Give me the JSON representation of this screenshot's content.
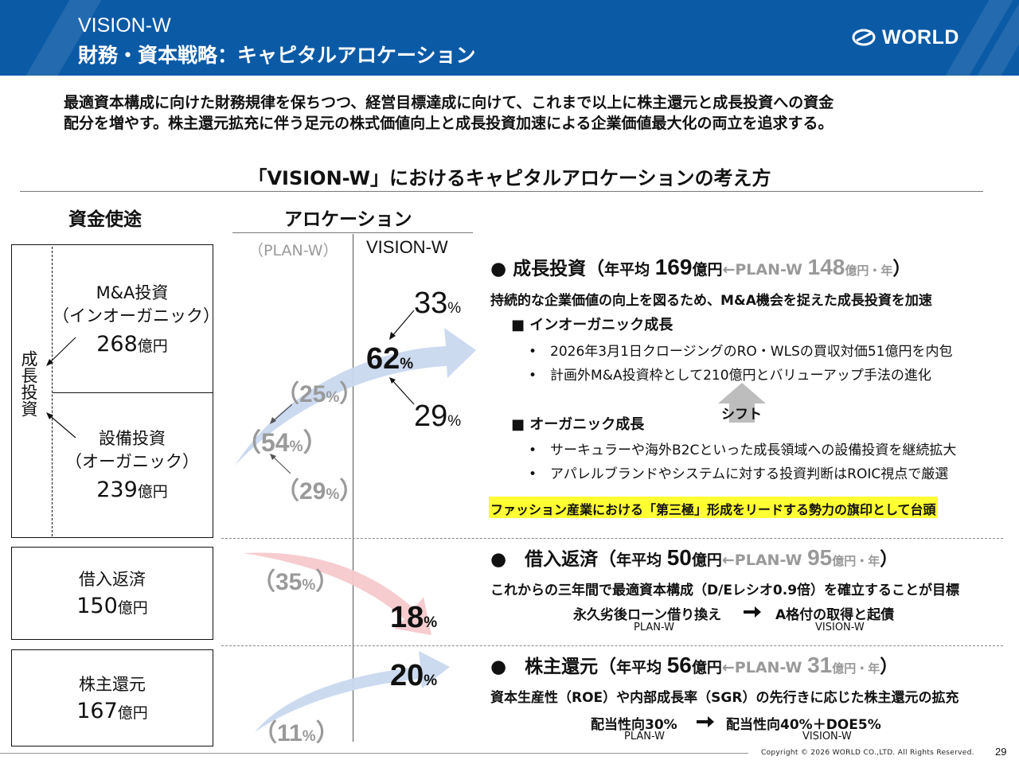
{
  "header": {
    "title_line1": "VISION-W",
    "title_line2": "財務・資本戦略：キャピタルアロケーション",
    "logo_text": "WORLD",
    "bg_color": "#0b5aa6"
  },
  "intro": {
    "line1": "最適資本構成に向けた財務規律を保ちつつ、経営目標達成に向けて、これまで以上に株主還元と成長投資への資金",
    "line2": "配分を増やす。株主還元拡充に伴う足元の株式価値向上と成長投資加速による企業価値最大化の両立を追求する。"
  },
  "section_title": "「VISION-W」におけるキャピタルアロケーションの考え方",
  "columns": {
    "uses": "資金使途",
    "allocation": "アロケーション",
    "plan_w": "（PLAN-W）",
    "vision_w": "VISION-W"
  },
  "uses": {
    "growth_label": "成長投資",
    "ma": {
      "line1": "M&A投資",
      "line2": "（インオーガニック）",
      "amount": "268",
      "unit": "億円"
    },
    "capex": {
      "line1": "設備投資",
      "line2": "（オーガニック）",
      "amount": "239",
      "unit": "億円"
    },
    "debt": {
      "line1": "借入返済",
      "amount": "150",
      "unit": "億円"
    },
    "return": {
      "line1": "株主還元",
      "amount": "167",
      "unit": "億円"
    }
  },
  "allocation": {
    "plan_ma": "（25",
    "plan_growth": "（54",
    "plan_capex": "（29",
    "plan_debt": "（35",
    "plan_return": "（11",
    "vision_ma": "33",
    "vision_growth": "62",
    "vision_capex": "29",
    "vision_debt": "18",
    "vision_return": "20",
    "pct_sign": "%",
    "close_paren": "）"
  },
  "growth": {
    "heading": "成長投資",
    "paren_open": "（",
    "avg_label": "年平均",
    "value": "169",
    "unit": "億円",
    "arrow_plan": "←PLAN-W",
    "plan_value": "148",
    "plan_unit": "億円・年",
    "paren_close": "）",
    "desc": "持続的な企業価値の向上を図るため、M&A機会を捉えた成長投資を加速",
    "inorganic_title": "インオーガニック成長",
    "inorganic_bullets": [
      "2026年3月1日クロージングのRO・WLSの買収対価51億円を内包",
      "計画外M&A投資枠として210億円とバリューアップ手法の進化"
    ],
    "shift_label": "シフト",
    "organic_title": "オーガニック成長",
    "organic_bullets": [
      "サーキュラーや海外B2Cといった成長領域への設備投資を継続拡大",
      "アパレルブランドやシステムに対する投資判断はROIC視点で厳選"
    ],
    "highlight": "ファッション産業における「第三極」形成をリードする勢力の旗印として台頭",
    "highlight_color": "#ffff33"
  },
  "debt": {
    "heading": "借入返済",
    "paren_open": "（",
    "avg_label": "年平均",
    "value": "50",
    "unit": "億円",
    "arrow_plan": "←PLAN-W",
    "plan_value": "95",
    "plan_unit": "億円・年",
    "paren_close": "）",
    "desc": "これからの三年間で最適資本構成（D/Eレシオ0.9倍）を確立することが目標",
    "from": "永久劣後ローン借り換え",
    "to": "A格付の取得と起債",
    "from_sub": "PLAN-W",
    "to_sub": "VISION-W"
  },
  "shareholder": {
    "heading": "株主還元",
    "paren_open": "（",
    "avg_label": "年平均",
    "value": "56",
    "unit": "億円",
    "arrow_plan": "←PLAN-W",
    "plan_value": "31",
    "plan_unit": "億円・年",
    "paren_close": "）",
    "desc": "資本生産性（ROE）や内部成長率（SGR）の先行きに応じた株主還元の拡充",
    "from": "配当性向30%",
    "to": "配当性向40%＋DOE5%",
    "from_sub": "PLAN-W",
    "to_sub": "VISION-W"
  },
  "footer": {
    "copyright": "Copyright © 2026 WORLD CO.,LTD. All Rights Reserved.",
    "page": "29"
  },
  "colors": {
    "blue_arrow": "#c9d8ef",
    "red_arrow": "#f6c9cc"
  }
}
